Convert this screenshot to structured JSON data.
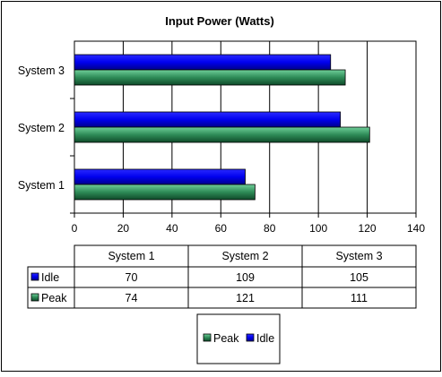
{
  "chart_data": {
    "type": "bar",
    "orientation": "horizontal",
    "title": "Input Power (Watts)",
    "categories": [
      "System 1",
      "System 2",
      "System 3"
    ],
    "series": [
      {
        "name": "Idle",
        "values": [
          70,
          109,
          105
        ],
        "color": "#0000e0"
      },
      {
        "name": "Peak",
        "values": [
          74,
          121,
          111
        ],
        "color": "#2e8b57"
      }
    ],
    "xlim": [
      0,
      140
    ],
    "xticks": [
      0,
      20,
      40,
      60,
      80,
      100,
      120,
      140
    ],
    "grid": true,
    "legend_position": "bottom",
    "legend_order": [
      "Peak",
      "Idle"
    ],
    "data_table": true
  }
}
